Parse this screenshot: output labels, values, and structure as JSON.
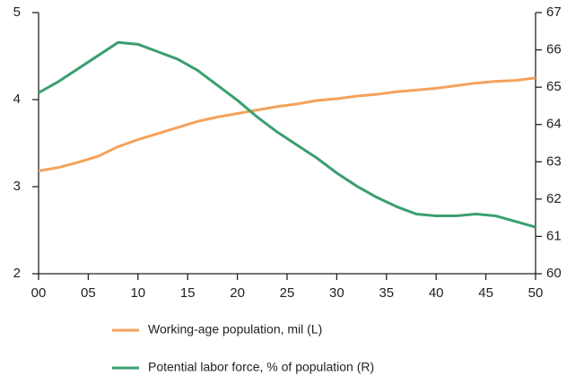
{
  "chart_data": {
    "type": "line",
    "x": [
      0,
      2,
      4,
      6,
      8,
      10,
      12,
      14,
      16,
      18,
      20,
      22,
      24,
      26,
      28,
      30,
      32,
      34,
      36,
      38,
      40,
      42,
      44,
      46,
      48,
      50
    ],
    "series": [
      {
        "name": "Working-age population, mil (L)",
        "color": "#f5a25c",
        "axis": "y",
        "values": [
          3.18,
          3.22,
          3.28,
          3.35,
          3.46,
          3.54,
          3.61,
          3.68,
          3.75,
          3.8,
          3.84,
          3.88,
          3.92,
          3.95,
          3.99,
          4.01,
          4.04,
          4.06,
          4.09,
          4.11,
          4.13,
          4.16,
          4.19,
          4.21,
          4.22,
          4.25
        ]
      },
      {
        "name": "Potential labor force, % of population (R)",
        "color": "#3a9f6f",
        "axis": "y2",
        "values": [
          64.85,
          65.15,
          65.5,
          65.85,
          66.2,
          66.15,
          65.95,
          65.75,
          65.45,
          65.05,
          64.65,
          64.2,
          63.8,
          63.45,
          63.1,
          62.7,
          62.35,
          62.05,
          61.8,
          61.6,
          61.55,
          61.55,
          61.6,
          61.55,
          61.4,
          61.25
        ]
      }
    ],
    "xlim": [
      0,
      50
    ],
    "xticks": [
      {
        "value": 0,
        "label": "00"
      },
      {
        "value": 5,
        "label": "05"
      },
      10,
      15,
      20,
      25,
      30,
      35,
      40,
      45,
      50
    ],
    "ylim": [
      2,
      5
    ],
    "yticks": [
      2,
      3,
      4,
      5
    ],
    "y2lim": [
      60,
      67
    ],
    "y2ticks": [
      60,
      61,
      62,
      63,
      64,
      65,
      66,
      67
    ],
    "grid": false,
    "legend": "bottom"
  }
}
